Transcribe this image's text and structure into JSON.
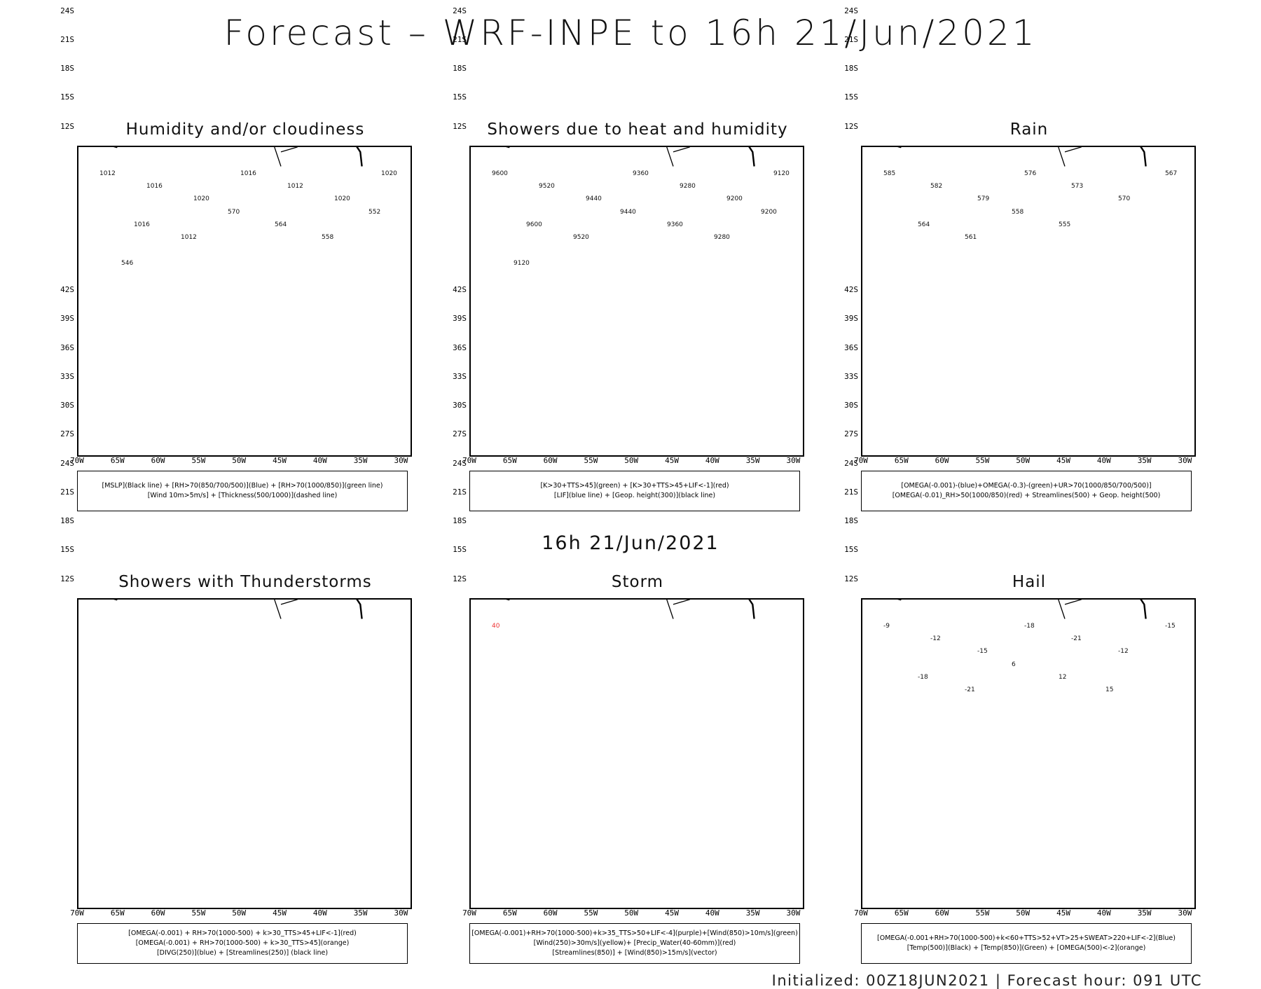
{
  "header": {
    "title": "Forecast – WRF-INPE to 16h 21/Jun/2021",
    "subtitle": "16h 21/Jun/2021"
  },
  "axes": {
    "lat_labels": [
      "12S",
      "15S",
      "18S",
      "21S",
      "24S",
      "27S",
      "30S",
      "33S",
      "36S",
      "39S",
      "42S"
    ],
    "lon_labels": [
      "70W",
      "65W",
      "60W",
      "55W",
      "50W",
      "45W",
      "40W",
      "35W",
      "30W"
    ]
  },
  "panels": [
    {
      "title": "Humidity and/or cloudiness",
      "legend": [
        "[MSLP](Black line) + [RH>70(850/700/500)](Blue) + [RH>70(1000/850)](green line)",
        "[Wind 10m>5m/s] + [Thickness(500/1000)](dashed line)"
      ],
      "contour_labels": [
        "1012",
        "1016",
        "1020",
        "1016",
        "1012",
        "1020",
        "1020",
        "1016",
        "1012",
        "570",
        "564",
        "558",
        "552",
        "546"
      ]
    },
    {
      "title": "Showers due to heat and humidity",
      "legend": [
        "[K>30+TTS>45](green) + [K>30+TTS>45+LIF<-1](red)",
        "[LIF](blue line) + [Geop. height(300)](black line)"
      ],
      "contour_labels": [
        "9600",
        "9520",
        "9440",
        "9360",
        "9280",
        "9200",
        "9120",
        "9600",
        "9520",
        "9440",
        "9360",
        "9280",
        "9200",
        "9120"
      ]
    },
    {
      "title": "Rain",
      "legend": [
        "[OMEGA(-0.001)-(blue)+OMEGA(-0.3)-(green)+UR>70(1000/850/700/500)]",
        "[OMEGA(-0.01)_RH>50(1000/850)(red) + Streamlines(500) + Geop. height(500)"
      ],
      "contour_labels": [
        "585",
        "582",
        "579",
        "576",
        "573",
        "570",
        "567",
        "564",
        "561",
        "558",
        "555"
      ]
    },
    {
      "title": "Showers with Thunderstorms",
      "legend": [
        "[OMEGA(-0.001) + RH>70(1000-500) + k>30_TTS>45+LIF<-1](red)",
        "[OMEGA(-0.001) + RH>70(1000-500) + k>30_TTS>45](orange)",
        "[DIVG(250)](blue) + [Streamlines(250)] (black line)"
      ],
      "contour_labels": []
    },
    {
      "title": "Storm",
      "legend": [
        "[OMEGA(-0.001)+RH>70(1000-500)+k>35_TTS>50+LIF<-4](purple)+[Wind(850)>10m/s](green)",
        "[Wind(250)>30m/s](yellow)+ [Precip_Water(40-60mm)](red)",
        "[Streamlines(850)] + [Wind(850)>15m/s](vector)"
      ],
      "contour_labels": [
        "40"
      ]
    },
    {
      "title": "Hail",
      "legend": [
        "[OMEGA(-0.001+RH>70(1000-500)+k<60+TTS>52+VT>25+SWEAT>220+LIF<-2](Blue)",
        "[Temp(500)](Black) + [Temp(850)](Green) + [OMEGA(500)<-2](orange)"
      ],
      "contour_labels": [
        "-9",
        "-12",
        "-15",
        "-18",
        "-21",
        "-12",
        "-15",
        "-18",
        "-21",
        "6",
        "12",
        "15"
      ]
    }
  ],
  "footer": "Initialized: 00Z18JUN2021 | Forecast hour: 091 UTC",
  "colors": {
    "land_line": "#000000",
    "green": "#22cc22",
    "red": "#ee3333",
    "blue": "#2244ee",
    "lavender": "#9999ee",
    "darkteal": "#1f4a48",
    "yellow": "#dcd82a",
    "orange": "#ee8833"
  }
}
